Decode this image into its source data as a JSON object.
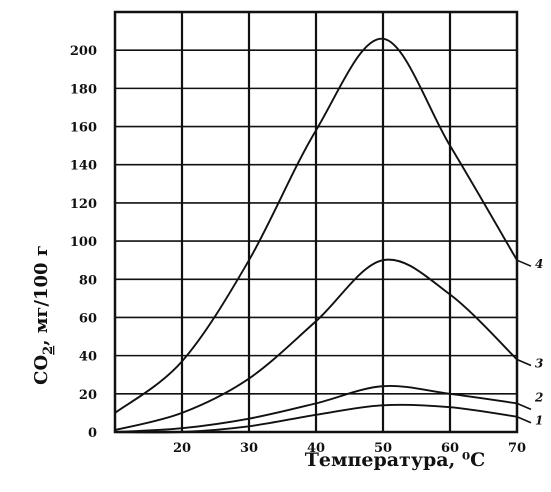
{
  "chart_data": {
    "type": "line",
    "xlabel": "Температура, ⁰С",
    "ylabel_parts": [
      "CO",
      "2",
      ", мг/100 г"
    ],
    "xlim": [
      10,
      70
    ],
    "ylim": [
      0,
      220
    ],
    "x_ticks": [
      "20",
      "30",
      "40",
      "50",
      "60",
      "70"
    ],
    "y_ticks": [
      "0",
      "20",
      "40",
      "60",
      "80",
      "100",
      "120",
      "140",
      "160",
      "180",
      "200"
    ],
    "grid": true,
    "series": [
      {
        "name": "1",
        "x": [
          10,
          20,
          30,
          40,
          50,
          60,
          70
        ],
        "values": [
          0,
          0,
          3,
          9,
          14,
          13,
          8
        ]
      },
      {
        "name": "2",
        "x": [
          10,
          20,
          30,
          40,
          50,
          60,
          70
        ],
        "values": [
          0,
          2,
          7,
          15,
          24,
          20,
          15
        ]
      },
      {
        "name": "3",
        "x": [
          10,
          20,
          30,
          40,
          50,
          60,
          70
        ],
        "values": [
          1,
          10,
          28,
          58,
          90,
          72,
          38
        ]
      },
      {
        "name": "4",
        "x": [
          10,
          20,
          30,
          40,
          50,
          60,
          70
        ],
        "values": [
          10,
          37,
          90,
          158,
          206,
          150,
          90
        ]
      }
    ]
  }
}
